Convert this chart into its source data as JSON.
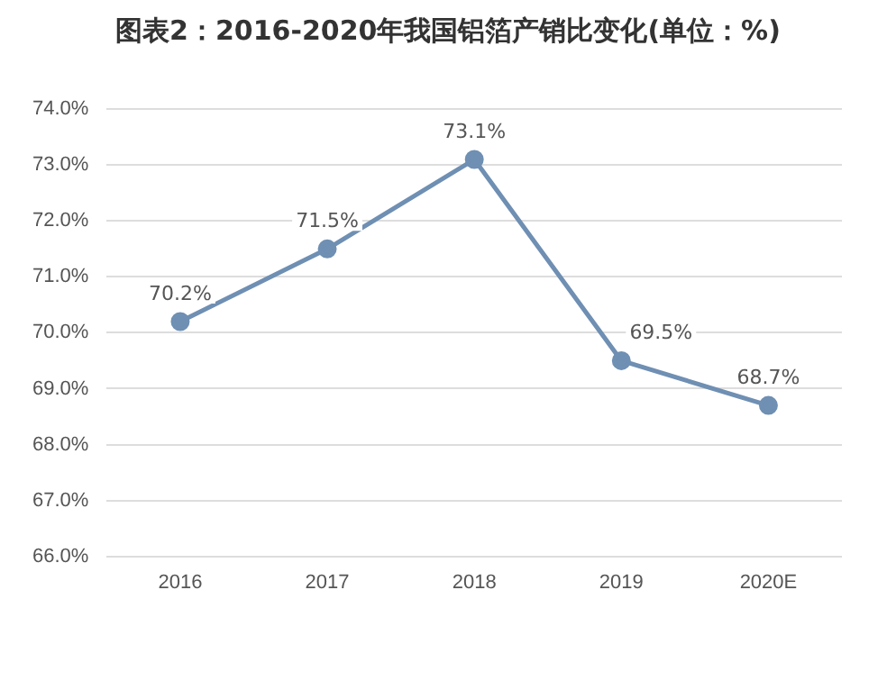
{
  "chart_data": {
    "type": "line",
    "title": "图表2：2016-2020年我国铝箔产销比变化(单位：%)",
    "categories": [
      "2016",
      "2017",
      "2018",
      "2019",
      "2020E"
    ],
    "series": [
      {
        "color": "#6f8fb3",
        "values": [
          70.2,
          71.5,
          73.1,
          69.5,
          68.7
        ]
      }
    ],
    "ylim": [
      66,
      74
    ],
    "yticks": [
      {
        "value": 66,
        "label": "66.0%"
      },
      {
        "value": 67,
        "label": "67.0%"
      },
      {
        "value": 68,
        "label": "68.0%"
      },
      {
        "value": 69,
        "label": "69.0%"
      },
      {
        "value": 70,
        "label": "70.0%"
      },
      {
        "value": 71,
        "label": "71.0%"
      },
      {
        "value": 72,
        "label": "72.0%"
      },
      {
        "value": 73,
        "label": "73.0%"
      },
      {
        "value": 74,
        "label": "74.0%"
      }
    ],
    "value_labels": [
      "70.2%",
      "71.5%",
      "73.1%",
      "69.5%",
      "68.7%"
    ],
    "grid": "y",
    "marker": "circle",
    "line_style": "solid",
    "legend": false
  }
}
